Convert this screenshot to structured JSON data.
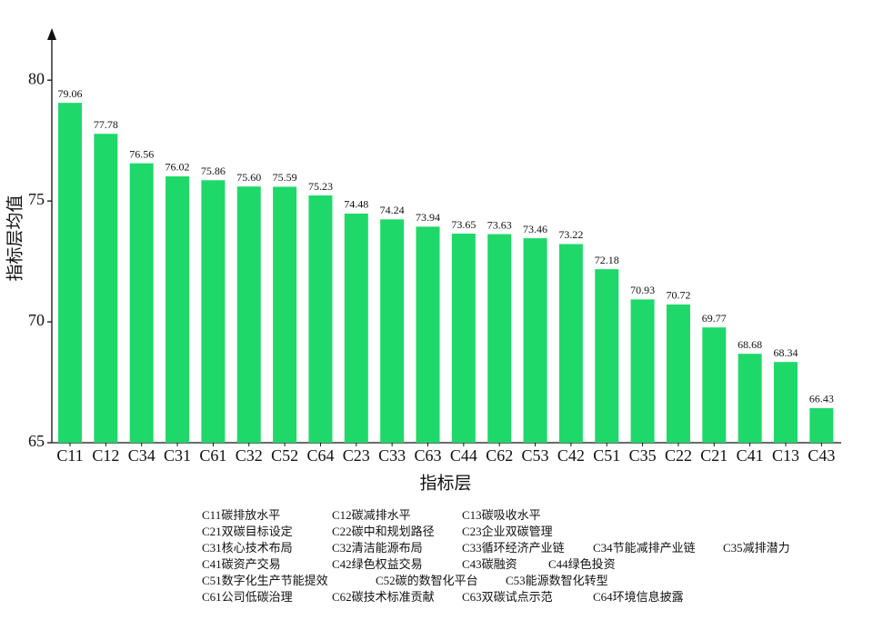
{
  "chart_data": {
    "type": "bar",
    "x_label": "指标层",
    "y_label": "指标层均值",
    "categories": [
      "C11",
      "C12",
      "C34",
      "C31",
      "C61",
      "C32",
      "C52",
      "C64",
      "C23",
      "C33",
      "C63",
      "C44",
      "C62",
      "C53",
      "C42",
      "C51",
      "C35",
      "C22",
      "C21",
      "C41",
      "C13",
      "C43"
    ],
    "values": [
      79.06,
      77.78,
      76.56,
      76.02,
      75.86,
      75.6,
      75.59,
      75.23,
      74.48,
      74.24,
      73.94,
      73.65,
      73.63,
      73.46,
      73.22,
      72.18,
      70.93,
      70.72,
      69.77,
      68.68,
      68.34,
      66.43
    ],
    "value_labels": [
      "79.06",
      "77.78",
      "76.56",
      "76.02",
      "75.86",
      "75.60",
      "75.59",
      "75.23",
      "74.48",
      "74.24",
      "73.94",
      "73.65",
      "73.63",
      "73.46",
      "73.22",
      "72.18",
      "70.93",
      "70.72",
      "69.77",
      "68.68",
      "68.34",
      "66.43"
    ],
    "color": "#1fd86a",
    "ylim": [
      65,
      82
    ],
    "yticks": [
      65,
      70,
      75,
      80
    ]
  },
  "legend": {
    "rows": [
      [
        "C11碳排放水平",
        "C12碳减排水平",
        "C13碳吸收水平"
      ],
      [
        "C21双碳目标设定",
        "C22碳中和规划路径",
        "C23企业双碳管理"
      ],
      [
        "C31核心技术布局",
        "C32清洁能源布局",
        "C33循环经济产业链",
        "C34节能减排产业链",
        "C35减排潜力"
      ],
      [
        "C41碳资产交易",
        "C42绿色权益交易",
        "C43碳融资",
        "C44绿色投资"
      ],
      [
        "C51数字化生产节能提效",
        "C52碳的数智化平台",
        "C53能源数智化转型"
      ],
      [
        "C61公司低碳治理",
        "C62碳技术标准贡献",
        "C63双碳试点示范",
        "C64环境信息披露"
      ]
    ]
  }
}
